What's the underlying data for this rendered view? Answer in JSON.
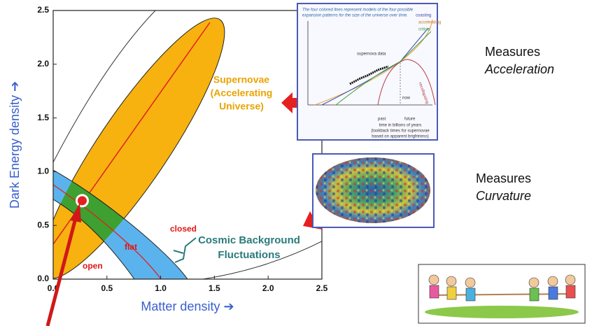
{
  "chart_data": {
    "type": "region",
    "xlabel": "Matter density ➔",
    "ylabel": "Dark Energy density ➔",
    "xlim": [
      0,
      2.5
    ],
    "ylim": [
      0,
      2.5
    ],
    "xticks": [
      {
        "value": 0,
        "label": "0.0"
      },
      0.5,
      {
        "value": 1,
        "label": "1.0"
      },
      1.5,
      {
        "value": 2,
        "label": "2.0"
      },
      2.5
    ],
    "yticks": [
      {
        "value": 0,
        "label": "0.0"
      },
      0.5,
      {
        "value": 1,
        "label": "1.0"
      },
      1.5,
      {
        "value": 2,
        "label": "2.0"
      },
      2.5
    ],
    "annotations": [
      "Supernovae",
      "(Accelerating",
      "Universe)",
      "closed",
      "flat",
      "open",
      "Cosmic Background",
      "Fluctuations"
    ],
    "point": {
      "x": 0.27,
      "y": 0.73
    }
  },
  "side_labels": [
    [
      "Measures",
      "Acceleration"
    ],
    [
      "Measures",
      "Curvature"
    ]
  ],
  "supernova_inset": {
    "caption": [
      "The four colored lines represent models of the four possible",
      "expansion patterns for the size of the universe over time."
    ],
    "curves": [
      "accelerating",
      "coasting",
      "critical",
      "recollapsing"
    ],
    "labels": [
      "supernova data",
      "now",
      "past",
      "future",
      "time in billions of years",
      "(lookback times for supernovae",
      "based on apparent brightness)"
    ]
  }
}
